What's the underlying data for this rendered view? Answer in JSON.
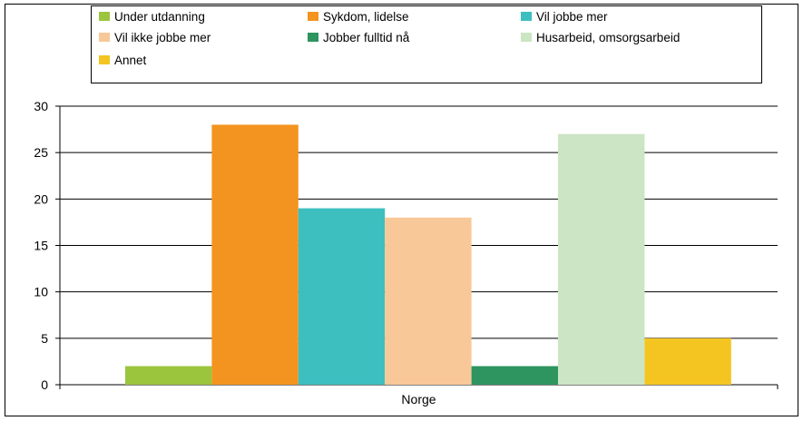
{
  "chart_data": {
    "type": "bar",
    "categories": [
      "Norge"
    ],
    "series": [
      {
        "name": "Under utdanning",
        "values": [
          2
        ],
        "color": "#9bc53d"
      },
      {
        "name": "Sykdom, lidelse",
        "values": [
          28
        ],
        "color": "#f39420"
      },
      {
        "name": "Vil jobbe mer",
        "values": [
          19
        ],
        "color": "#3dbfbf"
      },
      {
        "name": "Vil ikke jobbe mer",
        "values": [
          18
        ],
        "color": "#f8c898"
      },
      {
        "name": "Jobber fulltid nå",
        "values": [
          2
        ],
        "color": "#2e9460"
      },
      {
        "name": "Husarbeid, omsorgsarbeid",
        "values": [
          27
        ],
        "color": "#cce5c4"
      },
      {
        "name": "Annet",
        "values": [
          5
        ],
        "color": "#f4c520"
      }
    ],
    "ylim": [
      0,
      30
    ],
    "yticks": [
      0,
      5,
      10,
      15,
      20,
      25,
      30
    ],
    "grid": true,
    "legend_position": "top",
    "title": "",
    "xlabel": "",
    "ylabel": ""
  }
}
